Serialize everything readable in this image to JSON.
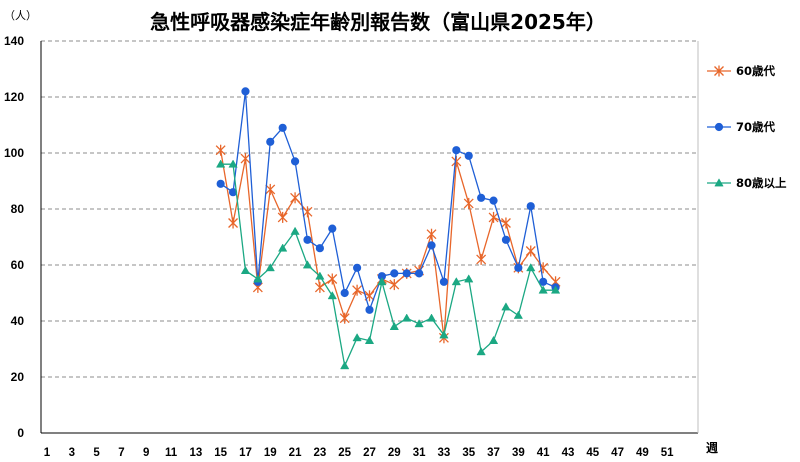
{
  "chart_data": {
    "type": "line",
    "title": "急性呼吸器感染症年齢別報告数（富山県2025年）",
    "unit_label": "（人）",
    "xlabel": "週",
    "ylabel": "",
    "ylim": [
      0,
      140
    ],
    "yticks": [
      0,
      20,
      40,
      60,
      80,
      100,
      120,
      140
    ],
    "xlim": [
      1,
      53
    ],
    "xticks": [
      1,
      3,
      5,
      7,
      9,
      11,
      13,
      15,
      17,
      19,
      21,
      23,
      25,
      27,
      29,
      31,
      33,
      35,
      37,
      39,
      41,
      43,
      45,
      47,
      49,
      51
    ],
    "grid": "horizontal dashed",
    "legend_position": "right",
    "series": [
      {
        "name": "60歳代",
        "color": "#E8662A",
        "marker": "asterisk",
        "x": [
          15,
          16,
          17,
          18,
          19,
          20,
          21,
          22,
          23,
          24,
          25,
          26,
          27,
          28,
          29,
          30,
          31,
          32,
          33,
          34,
          35,
          36,
          37,
          38,
          39,
          40,
          41,
          42
        ],
        "values": [
          101,
          75,
          98,
          52,
          87,
          77,
          84,
          79,
          52,
          55,
          41,
          51,
          49,
          55,
          53,
          57,
          58,
          71,
          34,
          97,
          82,
          62,
          77,
          75,
          59,
          65,
          59,
          54
        ]
      },
      {
        "name": "70歳代",
        "color": "#1F5FD6",
        "marker": "circle",
        "x": [
          15,
          16,
          17,
          18,
          19,
          20,
          21,
          22,
          23,
          24,
          25,
          26,
          27,
          28,
          29,
          30,
          31,
          32,
          33,
          34,
          35,
          36,
          37,
          38,
          39,
          40,
          41,
          42
        ],
        "values": [
          89,
          86,
          122,
          54,
          104,
          109,
          97,
          69,
          66,
          73,
          50,
          59,
          44,
          56,
          57,
          57,
          57,
          67,
          54,
          101,
          99,
          84,
          83,
          69,
          59,
          81,
          54,
          52
        ]
      },
      {
        "name": "80歳以上",
        "color": "#1BA883",
        "marker": "triangle",
        "x": [
          15,
          16,
          17,
          18,
          19,
          20,
          21,
          22,
          23,
          24,
          25,
          26,
          27,
          28,
          29,
          30,
          31,
          32,
          33,
          34,
          35,
          36,
          37,
          38,
          39,
          40,
          41,
          42
        ],
        "values": [
          96,
          96,
          58,
          55,
          59,
          66,
          72,
          60,
          56,
          49,
          24,
          34,
          33,
          54,
          38,
          41,
          39,
          41,
          35,
          54,
          55,
          29,
          33,
          45,
          42,
          59,
          51,
          51
        ]
      }
    ]
  }
}
